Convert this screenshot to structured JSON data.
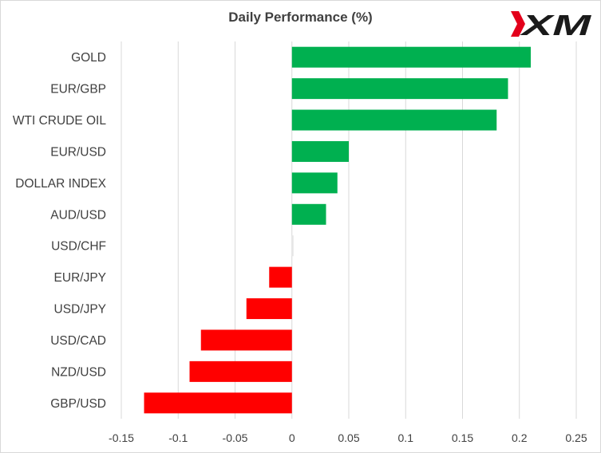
{
  "chart_data": {
    "type": "bar",
    "orientation": "horizontal",
    "title": "Daily Performance  (%)",
    "categories": [
      "GOLD",
      "EUR/GBP",
      "WTI CRUDE OIL",
      "EUR/USD",
      "DOLLAR INDEX",
      "AUD/USD",
      "USD/CHF",
      "EUR/JPY",
      "USD/JPY",
      "USD/CAD",
      "NZD/USD",
      "GBP/USD"
    ],
    "values": [
      0.21,
      0.19,
      0.18,
      0.05,
      0.04,
      0.03,
      0.0,
      -0.02,
      -0.04,
      -0.08,
      -0.09,
      -0.13
    ],
    "xlim": [
      -0.15,
      0.25
    ],
    "x_ticks": [
      "-0.15",
      "-0.1",
      "-0.05",
      "0",
      "0.05",
      "0.1",
      "0.15",
      "0.2",
      "0.25"
    ],
    "grid": "vertical",
    "legend": "none",
    "colors": {
      "positive": "#00b050",
      "negative": "#ff0000",
      "grid": "#d9d9d9",
      "text": "#404040"
    }
  },
  "logo": {
    "text": "XM",
    "colors": {
      "red": "#e3001b",
      "black": "#1a1a1a"
    }
  }
}
